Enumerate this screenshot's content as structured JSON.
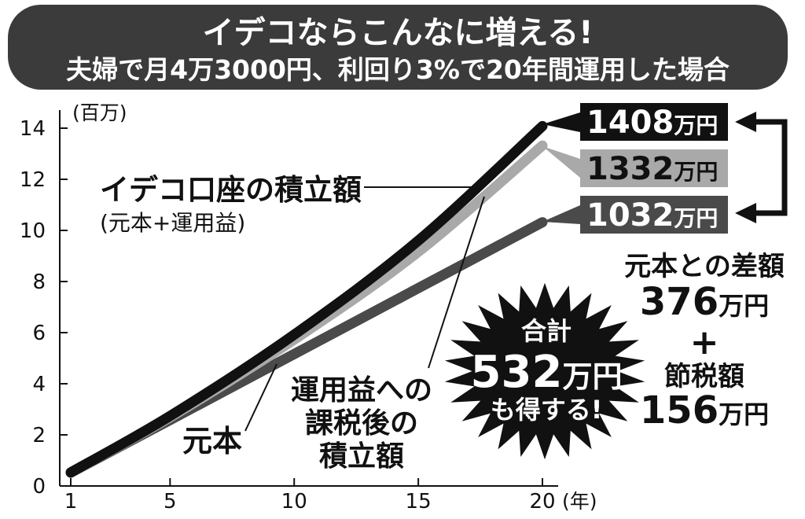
{
  "banner": {
    "title": "イデコならこんなに増える!",
    "subtitle": "夫婦で月4万3000円、利回り3%で20年間運用した場合"
  },
  "chart_data": {
    "type": "line",
    "x": [
      1,
      5,
      10,
      15,
      20
    ],
    "xlim": [
      0.5,
      21
    ],
    "ylim": [
      0,
      14
    ],
    "xticks": [
      1,
      5,
      10,
      15,
      20
    ],
    "yticks": [
      0,
      2,
      4,
      6,
      8,
      10,
      12,
      14
    ],
    "xunit": "(年)",
    "yunit": "(百万)",
    "grid": false,
    "series": [
      {
        "key": "ideco",
        "values": [
          0.53,
          2.74,
          5.92,
          9.6,
          14.08
        ],
        "color": "#111111",
        "end_label_num": "1408",
        "end_label_unit": "万円"
      },
      {
        "key": "taxed",
        "values": [
          0.53,
          2.69,
          5.73,
          9.16,
          13.32
        ],
        "color": "#a9a9a9",
        "end_label_num": "1332",
        "end_label_unit": "万円"
      },
      {
        "key": "principal",
        "values": [
          0.52,
          2.58,
          5.16,
          7.74,
          10.32
        ],
        "color": "#4a4a4a",
        "end_label_num": "1032",
        "end_label_unit": "万円"
      }
    ],
    "annotations": {
      "ideco_name": "イデコ口座の積立額",
      "ideco_sub": "(元本+運用益)",
      "principal_name": "元本",
      "taxed_line1": "運用益への",
      "taxed_line2": "課税後の",
      "taxed_line3": "積立額",
      "diff_label": "元本との差額",
      "diff_num": "376",
      "diff_unit": "万円",
      "plus": "+",
      "tax_saving_label": "節税額",
      "tax_saving_num": "156",
      "tax_saving_unit": "万円",
      "total_label": "合計",
      "total_num": "532",
      "total_unit": "万円",
      "total_suffix": "も得する!"
    }
  }
}
